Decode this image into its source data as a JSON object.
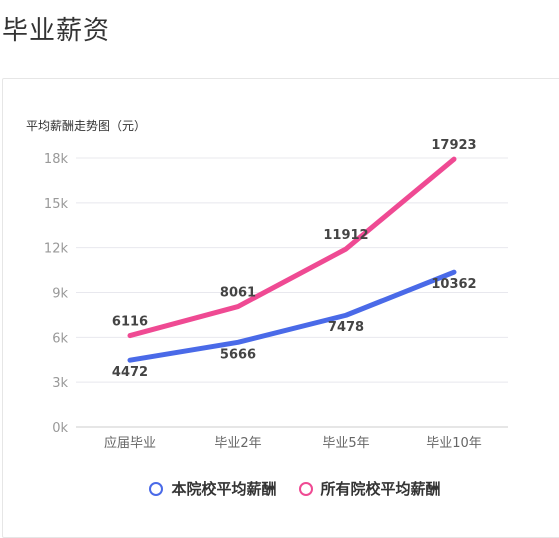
{
  "page": {
    "title": "毕业薪资"
  },
  "chart_data": {
    "type": "line",
    "title": "平均薪酬走势图（元）",
    "categories": [
      "应届毕业",
      "毕业2年",
      "毕业5年",
      "毕业10年"
    ],
    "series": [
      {
        "name": "本院校平均薪酬",
        "color": "#4a6ae8",
        "values": [
          4472,
          5666,
          7478,
          10362
        ]
      },
      {
        "name": "所有院校平均薪酬",
        "color": "#ef4a93",
        "values": [
          6116,
          8061,
          11912,
          17923
        ]
      }
    ],
    "ylim": [
      0,
      18000
    ],
    "yticks": [
      0,
      3000,
      6000,
      9000,
      12000,
      15000,
      18000
    ],
    "ytick_labels": [
      "0k",
      "3k",
      "6k",
      "9k",
      "12k",
      "15k",
      "18k"
    ],
    "grid": true,
    "legend_position": "bottom-center"
  }
}
